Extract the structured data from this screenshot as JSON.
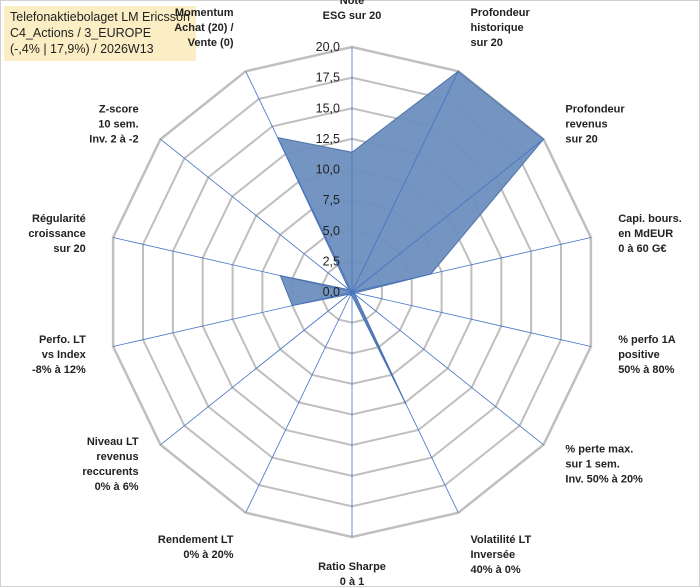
{
  "title": {
    "line1": "Telefonaktiebolaget LM Ericsson",
    "line2": "C4_Actions / 3_EUROPE",
    "line3": "(-,4% | 17,9%) / 2026W13"
  },
  "chart_data": {
    "type": "radar",
    "rmin": 0,
    "rmax": 20,
    "ticks": [
      "0,0",
      "2,5",
      "5,0",
      "7,5",
      "10,0",
      "12,5",
      "15,0",
      "17,5",
      "20,0"
    ],
    "tick_values": [
      0,
      2.5,
      5,
      7.5,
      10,
      12.5,
      15,
      17.5,
      20
    ],
    "axes": [
      {
        "label": [
          "Note",
          "ESG sur 20"
        ],
        "value": 11.4
      },
      {
        "label": [
          "Profondeur",
          "historique",
          "sur 20"
        ],
        "value": 20
      },
      {
        "label": [
          "Profondeur",
          "revenus",
          "sur 20"
        ],
        "value": 20
      },
      {
        "label": [
          "Capi. bours.",
          "en MdEUR",
          "0 à 60 G€"
        ],
        "value": 6.6
      },
      {
        "label": [
          "% perfo 1A",
          "positive",
          "50% à 80%"
        ],
        "value": 0.3
      },
      {
        "label": [
          "% perte max.",
          "sur 1 sem.",
          "Inv. 50% à 20%"
        ],
        "value": 0.3
      },
      {
        "label": [
          "Volatilité LT",
          "Inversée",
          "40% à 0%"
        ],
        "value": 10.2
      },
      {
        "label": [
          "Ratio Sharpe",
          "0 à 1"
        ],
        "value": 0.3
      },
      {
        "label": [
          "Rendement LT",
          "0% à 20%"
        ],
        "value": 0.3
      },
      {
        "label": [
          "Niveau LT",
          "revenus",
          "reccurents",
          "0% à 6%"
        ],
        "value": 0.3
      },
      {
        "label": [
          "Perfo. LT",
          "vs Index",
          "-8% à 12%"
        ],
        "value": 5.0
      },
      {
        "label": [
          "Régularité",
          "croissance",
          "sur 20"
        ],
        "value": 6.0
      },
      {
        "label": [
          "Z-score",
          "10 sem.",
          "Inv. 2 à -2"
        ],
        "value": 0.3
      },
      {
        "label": [
          "Momentum",
          "Achat (20) /",
          "Vente (0)"
        ],
        "value": 14.0
      }
    ],
    "colors": {
      "fill": "#6d8fbe",
      "stroke": "#4f74ab",
      "spokes": "#4472c4",
      "grid": "#bfbfbf",
      "title_bg": "#fbeec4"
    }
  }
}
